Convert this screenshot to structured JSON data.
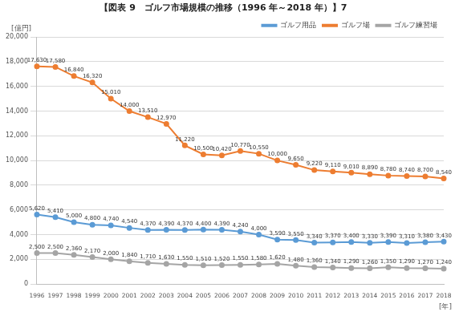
{
  "chart_data": {
    "type": "line",
    "title": "【図表 9　ゴルフ市場規模の推移（1996 年～2018 年）】7",
    "y_label": "[億円]",
    "x_label": "[年]",
    "categories": [
      "1996",
      "1997",
      "1998",
      "1999",
      "2000",
      "2001",
      "2002",
      "2003",
      "2004",
      "2005",
      "2006",
      "2007",
      "2008",
      "2009",
      "2010",
      "2011",
      "2012",
      "2013",
      "2014",
      "2015",
      "2016",
      "2017",
      "2018"
    ],
    "series": [
      {
        "name": "ゴルフ用品",
        "color": "#5b9bd5",
        "marker": "circle",
        "line_style": "solid",
        "values": [
          5620,
          5410,
          5000,
          4800,
          4740,
          4540,
          4370,
          4390,
          4370,
          4400,
          4390,
          4240,
          4000,
          3590,
          3550,
          3340,
          3370,
          3400,
          3330,
          3390,
          3310,
          3380,
          3430
        ],
        "value_labels": [
          "5,620",
          "5,410",
          "5,000",
          "4,800",
          "4,740",
          "4,540",
          "4,370",
          "4,390",
          "4,370",
          "4,400",
          "4,390",
          "4,240",
          "4,000",
          "3,590",
          "3,550",
          "3,340",
          "3,370",
          "3,400",
          "3,330",
          "3,390",
          "3,310",
          "3,380",
          "3,430"
        ]
      },
      {
        "name": "ゴルフ場",
        "color": "#ed7d31",
        "marker": "circle",
        "line_style": "solid",
        "values": [
          17630,
          17580,
          16840,
          16320,
          15010,
          14000,
          13510,
          12970,
          11220,
          10500,
          10420,
          10770,
          10550,
          10000,
          9650,
          9220,
          9110,
          9010,
          8890,
          8780,
          8740,
          8700,
          8540
        ],
        "value_labels": [
          "17,630",
          "17,580",
          "16,840",
          "16,320",
          "15,010",
          "14,000",
          "13,510",
          "12,970",
          "11,220",
          "10,500",
          "10,420",
          "10,770",
          "10,550",
          "10,000",
          "9,650",
          "9,220",
          "9,110",
          "9,010",
          "8,890",
          "8,780",
          "8,740",
          "8,700",
          "8,540"
        ]
      },
      {
        "name": "ゴルフ練習場",
        "color": "#a5a5a5",
        "marker": "circle",
        "line_style": "solid",
        "values": [
          2500,
          2500,
          2360,
          2170,
          2000,
          1840,
          1710,
          1630,
          1550,
          1510,
          1520,
          1550,
          1580,
          1620,
          1480,
          1360,
          1340,
          1290,
          1260,
          1350,
          1290,
          1270,
          1240
        ],
        "value_labels": [
          "2,500",
          "2,500",
          "2,360",
          "2,170",
          "2,000",
          "1,840",
          "1,710",
          "1,630",
          "1,550",
          "1,510",
          "1,520",
          "1,550",
          "1,580",
          "1,620",
          "1,480",
          "1,360",
          "1,340",
          "1,290",
          "1,260",
          "1,350",
          "1,290",
          "1,270",
          "1,240"
        ]
      }
    ],
    "ylim": [
      0,
      20000
    ],
    "yticks": [
      {
        "value": 0,
        "label": "0"
      },
      {
        "value": 2000,
        "label": "2,000"
      },
      {
        "value": 4000,
        "label": "4,000"
      },
      {
        "value": 6000,
        "label": "6,000"
      },
      {
        "value": 8000,
        "label": "8,000"
      },
      {
        "value": 10000,
        "label": "10,000"
      },
      {
        "value": 12000,
        "label": "12,000"
      },
      {
        "value": 14000,
        "label": "14,000"
      },
      {
        "value": 16000,
        "label": "16,000"
      },
      {
        "value": 18000,
        "label": "18,000"
      },
      {
        "value": 20000,
        "label": "20,000"
      }
    ],
    "grid": true,
    "legend": "top-right",
    "data_labels": true
  }
}
